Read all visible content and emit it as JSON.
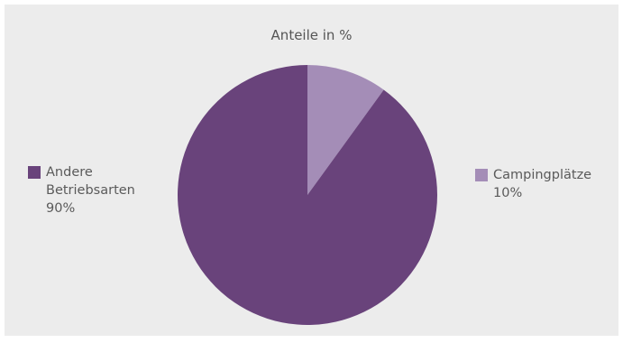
{
  "chart_data": {
    "type": "pie",
    "title": "Anteile in %",
    "slices": [
      {
        "label_lines": [
          "Campingplätze"
        ],
        "value_label": "10%",
        "value": 10,
        "color": "#a48db7"
      },
      {
        "label_lines": [
          "Andere",
          "Betriebsarten"
        ],
        "value_label": "90%",
        "value": 90,
        "color": "#69437b"
      }
    ]
  }
}
